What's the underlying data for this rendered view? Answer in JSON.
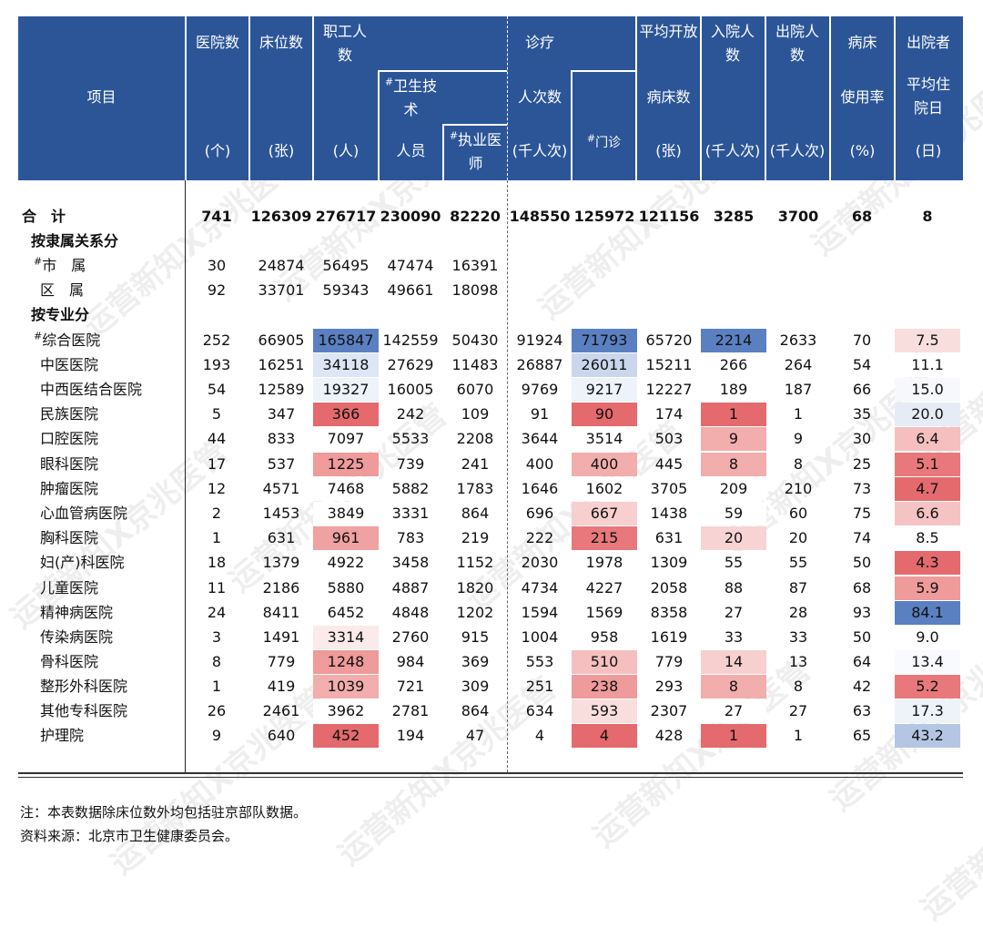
{
  "header": {
    "item": "项目",
    "hospitals": "医院数",
    "hospitals_unit": "(个)",
    "beds": "床位数",
    "beds_unit": "(张)",
    "staff": "职工人数",
    "staff_unit": "(人)",
    "health_tech": "卫生技术",
    "health_tech_unit": "人员",
    "physicians": "执业医师",
    "visits": "诊疗",
    "visits_sub": "人次数",
    "visits_unit": "(千人次)",
    "outpatient": "门诊",
    "open_beds": "平均开放",
    "open_beds_sub": "病床数",
    "open_beds_unit": "(张)",
    "admissions": "入院人数",
    "admissions_unit": "(千人次)",
    "discharges": "出院人数",
    "discharges_unit": "(千人次)",
    "bed_usage": "病床",
    "bed_usage_sub": "使用率",
    "bed_usage_unit": "(%)",
    "avg_stay": "出院者",
    "avg_stay_sub": "平均住院日",
    "avg_stay_unit": "(日)"
  },
  "rows": [
    {
      "label": "合　计",
      "type": "total",
      "values": [
        "741",
        "126309",
        "276717",
        "230090",
        "82220",
        "148550",
        "125972",
        "121156",
        "3285",
        "3700",
        "68",
        "8"
      ]
    },
    {
      "label": "按隶属关系分",
      "type": "section",
      "values": []
    },
    {
      "label": "市　属",
      "type": "sub",
      "sup": "#",
      "values": [
        "30",
        "24874",
        "56495",
        "47474",
        "16391",
        "",
        "",
        "",
        "",
        "",
        "",
        ""
      ]
    },
    {
      "label": "区　属",
      "type": "sub",
      "values": [
        "92",
        "33701",
        "59343",
        "49661",
        "18098",
        "",
        "",
        "",
        "",
        "",
        "",
        ""
      ]
    },
    {
      "label": "按专业分",
      "type": "section",
      "values": []
    },
    {
      "label": "综合医院",
      "type": "item",
      "sup": "#",
      "values": [
        "252",
        "66905",
        "165847",
        "142559",
        "50430",
        "91924",
        "71793",
        "65720",
        "2214",
        "2633",
        "70",
        "7.5"
      ]
    },
    {
      "label": "中医医院",
      "type": "item",
      "values": [
        "193",
        "16251",
        "34118",
        "27629",
        "11483",
        "26887",
        "26011",
        "15211",
        "266",
        "264",
        "54",
        "11.1"
      ]
    },
    {
      "label": "中西医结合医院",
      "type": "item",
      "values": [
        "54",
        "12589",
        "19327",
        "16005",
        "6070",
        "9769",
        "9217",
        "12227",
        "189",
        "187",
        "66",
        "15.0"
      ]
    },
    {
      "label": "民族医院",
      "type": "item",
      "values": [
        "5",
        "347",
        "366",
        "242",
        "109",
        "91",
        "90",
        "174",
        "1",
        "1",
        "35",
        "20.0"
      ]
    },
    {
      "label": "口腔医院",
      "type": "item",
      "values": [
        "44",
        "833",
        "7097",
        "5533",
        "2208",
        "3644",
        "3514",
        "503",
        "9",
        "9",
        "30",
        "6.4"
      ]
    },
    {
      "label": "眼科医院",
      "type": "item",
      "values": [
        "17",
        "537",
        "1225",
        "739",
        "241",
        "400",
        "400",
        "445",
        "8",
        "8",
        "25",
        "5.1"
      ]
    },
    {
      "label": "肿瘤医院",
      "type": "item",
      "values": [
        "12",
        "4571",
        "7468",
        "5882",
        "1783",
        "1646",
        "1602",
        "3705",
        "209",
        "210",
        "73",
        "4.7"
      ]
    },
    {
      "label": "心血管病医院",
      "type": "item",
      "values": [
        "2",
        "1453",
        "3849",
        "3331",
        "864",
        "696",
        "667",
        "1438",
        "59",
        "60",
        "75",
        "6.6"
      ]
    },
    {
      "label": "胸科医院",
      "type": "item",
      "values": [
        "1",
        "631",
        "961",
        "783",
        "219",
        "222",
        "215",
        "631",
        "20",
        "20",
        "74",
        "8.5"
      ]
    },
    {
      "label": "妇(产)科医院",
      "type": "item",
      "values": [
        "18",
        "1379",
        "4922",
        "3458",
        "1152",
        "2030",
        "1978",
        "1309",
        "55",
        "55",
        "50",
        "4.3"
      ]
    },
    {
      "label": "儿童医院",
      "type": "item",
      "values": [
        "11",
        "2186",
        "5880",
        "4887",
        "1820",
        "4734",
        "4227",
        "2058",
        "88",
        "87",
        "68",
        "5.9"
      ]
    },
    {
      "label": "精神病医院",
      "type": "item",
      "values": [
        "24",
        "8411",
        "6452",
        "4848",
        "1202",
        "1594",
        "1569",
        "8358",
        "27",
        "28",
        "93",
        "84.1"
      ]
    },
    {
      "label": "传染病医院",
      "type": "item",
      "values": [
        "3",
        "1491",
        "3314",
        "2760",
        "915",
        "1004",
        "958",
        "1619",
        "33",
        "33",
        "50",
        "9.0"
      ]
    },
    {
      "label": "骨科医院",
      "type": "item",
      "values": [
        "8",
        "779",
        "1248",
        "984",
        "369",
        "553",
        "510",
        "779",
        "14",
        "13",
        "64",
        "13.4"
      ]
    },
    {
      "label": "整形外科医院",
      "type": "item",
      "values": [
        "1",
        "419",
        "1039",
        "721",
        "309",
        "251",
        "238",
        "293",
        "8",
        "8",
        "42",
        "5.2"
      ]
    },
    {
      "label": "其他专科医院",
      "type": "item",
      "values": [
        "26",
        "2461",
        "3962",
        "2781",
        "864",
        "634",
        "593",
        "2307",
        "27",
        "27",
        "63",
        "17.3"
      ]
    },
    {
      "label": "护理院",
      "type": "item",
      "values": [
        "9",
        "640",
        "452",
        "194",
        "47",
        "4",
        "4",
        "428",
        "1",
        "1",
        "65",
        "43.2"
      ]
    }
  ],
  "heat_colors": {
    "staff": [
      "#5a80c2",
      "#dde6f4",
      "#eef2f9",
      "#e46a6e",
      "#ffffff",
      "#ef9a9b",
      "#ffffff",
      "#ffffff",
      "#f0a1a2",
      "#ffffff",
      "#ffffff",
      "#ffffff",
      "#fbeaea",
      "#ef9a9b",
      "#f2adad",
      "#ffffff",
      "#e46a6e"
    ],
    "outpatient": [
      "#5a80c2",
      "#c9d6ec",
      "#eef2f9",
      "#e46a6e",
      "#ffffff",
      "#f2adad",
      "#ffffff",
      "#f7cfcf",
      "#e8787b",
      "#ffffff",
      "#ffffff",
      "#ffffff",
      "#ffffff",
      "#f5bfbf",
      "#ef9a9b",
      "#f9dede",
      "#e46a6e"
    ],
    "admissions": [
      "#5a80c2",
      "#ffffff",
      "#ffffff",
      "#e46a6e",
      "#f2adad",
      "#f2adad",
      "#ffffff",
      "#ffffff",
      "#f7d3d3",
      "#ffffff",
      "#ffffff",
      "#ffffff",
      "#ffffff",
      "#f7cfcf",
      "#f2adad",
      "#ffffff",
      "#e46a6e"
    ],
    "avg_stay": [
      "#f9dede",
      "#ffffff",
      "#f6f8fc",
      "#e6ecf6",
      "#f5bfbf",
      "#e8787b",
      "#e46a6e",
      "#f5c3c3",
      "#ffffff",
      "#e46a6e",
      "#ef9a9b",
      "#5a80c2",
      "#ffffff",
      "#f8fafd",
      "#e8787b",
      "#eef2f9",
      "#b4c6e4"
    ]
  },
  "notes": [
    "注：本表数据除床位数外均包括驻京部队数据。",
    "资料来源：北京市卫生健康委员会。"
  ],
  "watermark": "运营新知X京兆医管"
}
